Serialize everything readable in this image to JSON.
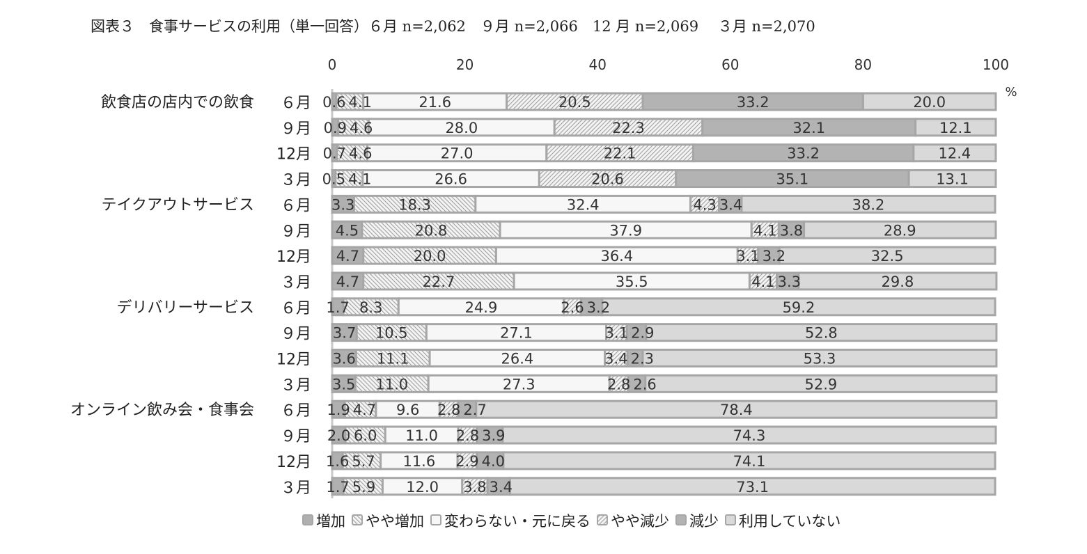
{
  "chart_data": {
    "type": "bar",
    "orientation": "horizontal",
    "stacked": true,
    "title": "図表３　食事サービスの利用（単一回答）６月 n=2,062　９月 n=2,066　12 月 n=2,069　 ３月 n=2,070",
    "unit": "%",
    "xlim": [
      0,
      100
    ],
    "xticks": [
      0,
      20,
      40,
      60,
      80,
      100
    ],
    "legend_position": "bottom",
    "series": [
      {
        "name": "増加",
        "color": "#b0b0b0",
        "pattern": "solid"
      },
      {
        "name": "やや増加",
        "color": "#d0d0d0",
        "pattern": "hatch-back"
      },
      {
        "name": "変わらない・元に戻る",
        "color": "#f7f7f7",
        "pattern": "solid"
      },
      {
        "name": "やや減少",
        "color": "#d0d0d0",
        "pattern": "hatch-forward"
      },
      {
        "name": "減少",
        "color": "#b3b3b3",
        "pattern": "solid"
      },
      {
        "name": "利用していない",
        "color": "#d9d9d9",
        "pattern": "solid"
      }
    ],
    "groups": [
      {
        "name": "飲食店の店内での飲食",
        "rows": [
          {
            "month": "６月",
            "values": [
              0.6,
              4.1,
              21.6,
              20.5,
              33.2,
              20.0
            ]
          },
          {
            "month": "９月",
            "values": [
              0.9,
              4.6,
              28.0,
              22.3,
              32.1,
              12.1
            ]
          },
          {
            "month": "12月",
            "values": [
              0.7,
              4.6,
              27.0,
              22.1,
              33.2,
              12.4
            ]
          },
          {
            "month": "３月",
            "values": [
              0.5,
              4.1,
              26.6,
              20.6,
              35.1,
              13.1
            ]
          }
        ]
      },
      {
        "name": "テイクアウトサービス",
        "rows": [
          {
            "month": "６月",
            "values": [
              3.3,
              18.3,
              32.4,
              4.3,
              3.4,
              38.2
            ]
          },
          {
            "month": "９月",
            "values": [
              4.5,
              20.8,
              37.9,
              4.1,
              3.8,
              28.9
            ]
          },
          {
            "month": "12月",
            "values": [
              4.7,
              20.0,
              36.4,
              3.1,
              3.2,
              32.5
            ]
          },
          {
            "month": "３月",
            "values": [
              4.7,
              22.7,
              35.5,
              4.1,
              3.3,
              29.8
            ]
          }
        ]
      },
      {
        "name": "デリバリーサービス",
        "rows": [
          {
            "month": "６月",
            "values": [
              1.7,
              8.3,
              24.9,
              2.6,
              3.2,
              59.2
            ]
          },
          {
            "month": "９月",
            "values": [
              3.7,
              10.5,
              27.1,
              3.1,
              2.9,
              52.8
            ]
          },
          {
            "month": "12月",
            "values": [
              3.6,
              11.1,
              26.4,
              3.4,
              2.3,
              53.3
            ]
          },
          {
            "month": "３月",
            "values": [
              3.5,
              11.0,
              27.3,
              2.8,
              2.6,
              52.9
            ]
          }
        ]
      },
      {
        "name": "オンライン飲み会・食事会",
        "rows": [
          {
            "month": "６月",
            "values": [
              1.9,
              4.7,
              9.6,
              2.8,
              2.7,
              78.4
            ]
          },
          {
            "month": "９月",
            "values": [
              2.0,
              6.0,
              11.0,
              2.8,
              3.9,
              74.3
            ]
          },
          {
            "month": "12月",
            "values": [
              1.6,
              5.7,
              11.6,
              2.9,
              4.0,
              74.1
            ]
          },
          {
            "month": "３月",
            "values": [
              1.7,
              5.9,
              12.0,
              3.8,
              3.4,
              73.1
            ]
          }
        ]
      }
    ]
  }
}
